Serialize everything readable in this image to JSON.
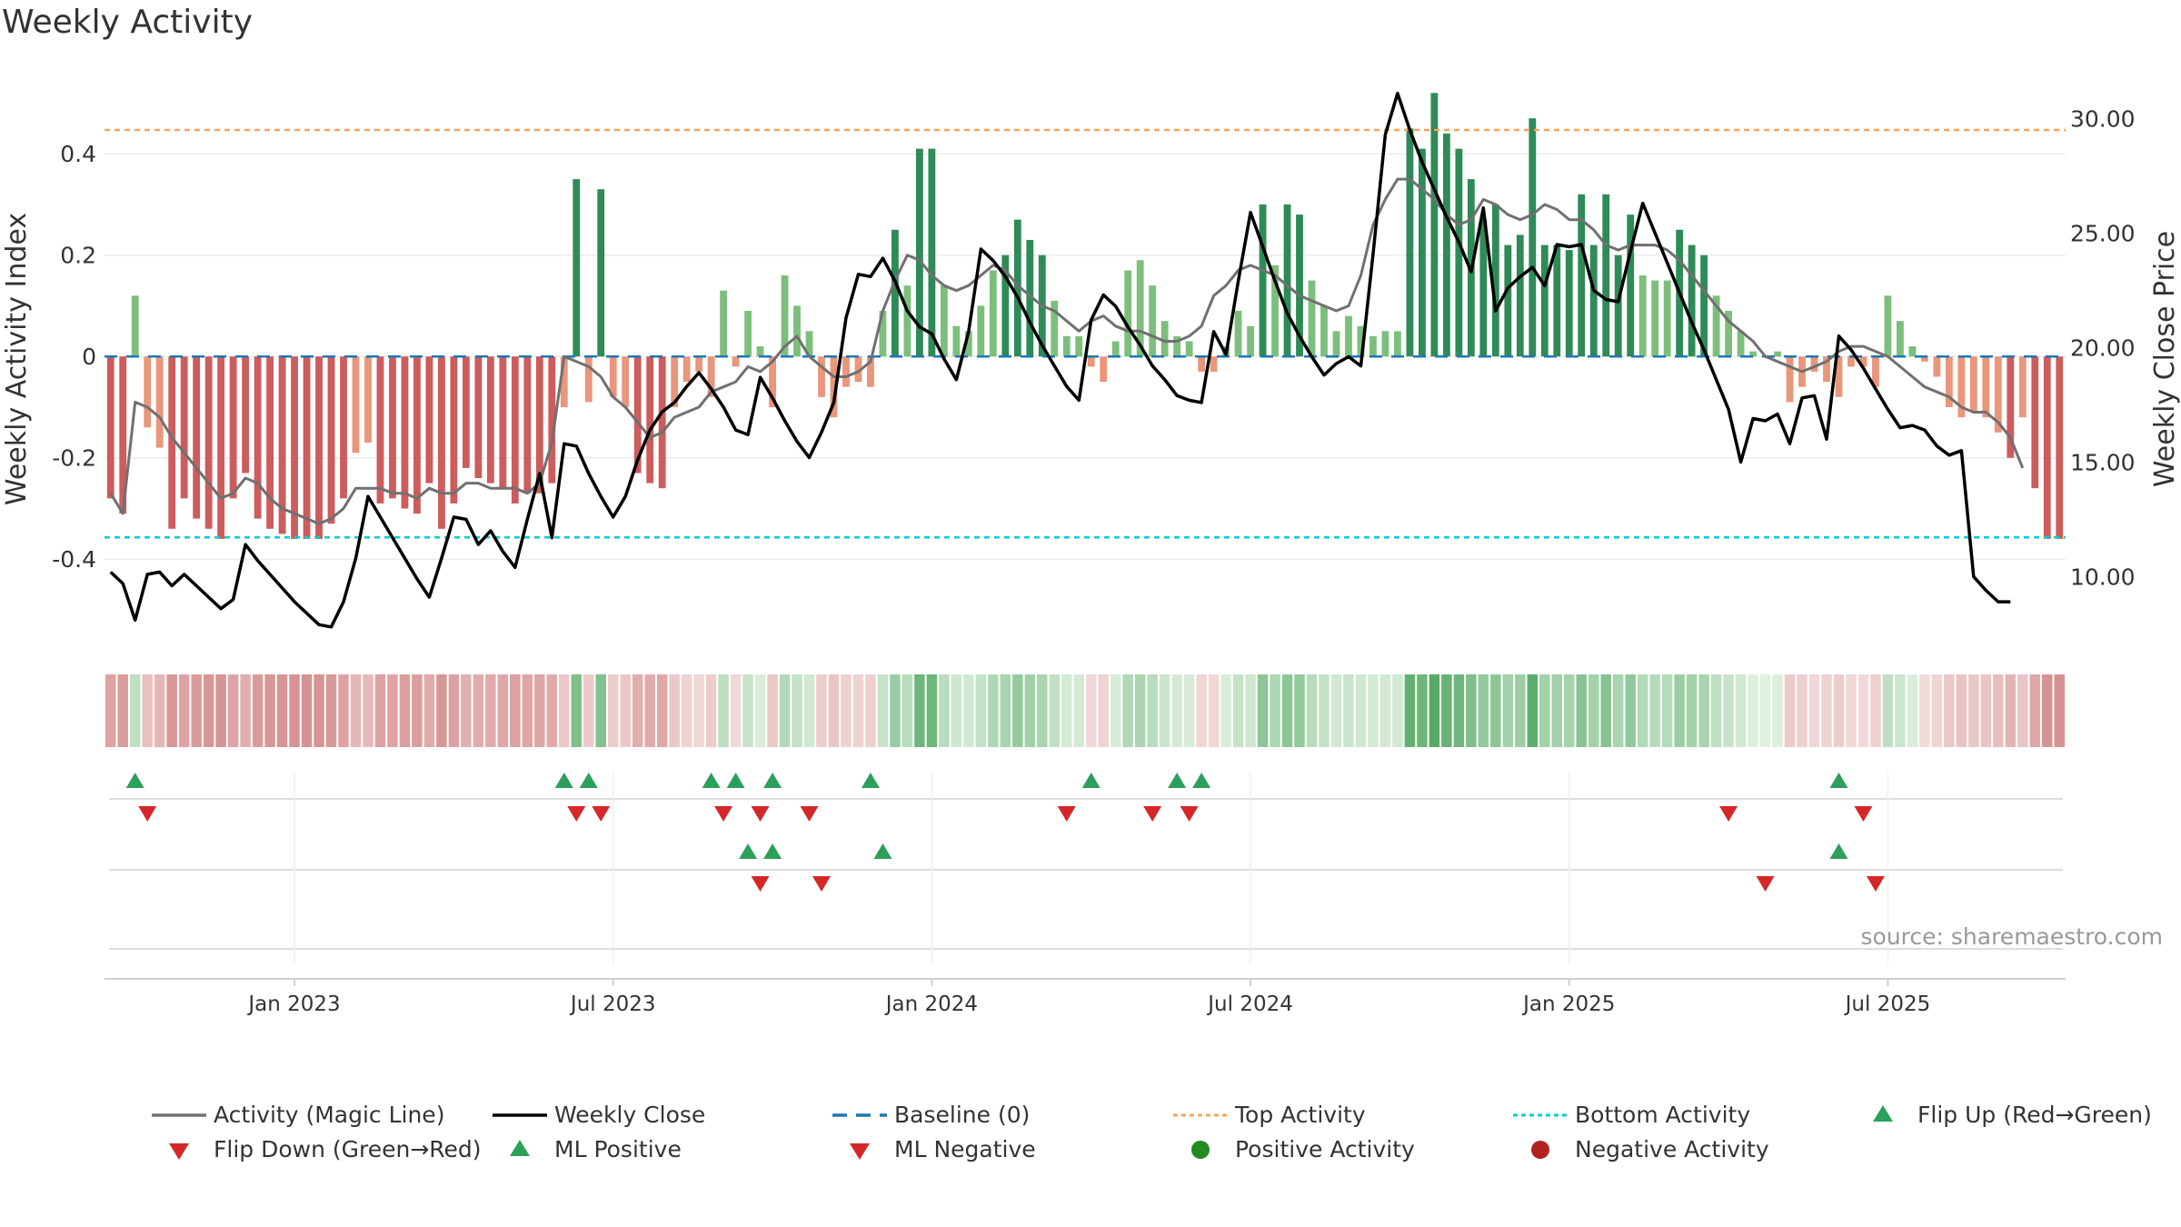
{
  "chart_data": {
    "type": "bar",
    "title": "Weekly Activity",
    "ylabel": "Weekly Activity Index",
    "y2label": "Weekly Close Price",
    "ylim": [
      -0.57,
      0.56
    ],
    "y2lim": [
      7,
      32
    ],
    "yticks": [
      {
        "value": 0.4,
        "label": "0.4"
      },
      {
        "value": 0.2,
        "label": "0.2"
      },
      {
        "value": 0,
        "label": "0"
      },
      {
        "value": -0.2,
        "label": "-0.2"
      },
      {
        "value": -0.4,
        "label": "-0.4"
      }
    ],
    "y2ticks": [
      {
        "value": 30,
        "label": "30.00"
      },
      {
        "value": 25,
        "label": "25.00"
      },
      {
        "value": 20,
        "label": "20.00"
      },
      {
        "value": 15,
        "label": "15.00"
      },
      {
        "value": 10,
        "label": "10.00"
      }
    ],
    "xticks": [
      {
        "week": 15,
        "label": "Jan 2023"
      },
      {
        "week": 41,
        "label": "Jul 2023"
      },
      {
        "week": 67,
        "label": "Jan 2024"
      },
      {
        "week": 93,
        "label": "Jul 2024"
      },
      {
        "week": 119,
        "label": "Jan 2025"
      },
      {
        "week": 145,
        "label": "Jul 2025"
      }
    ],
    "top_activity": 0.447,
    "bottom_activity": -0.357,
    "baseline": 0,
    "activity": [
      -0.28,
      -0.31,
      0.12,
      -0.14,
      -0.18,
      -0.34,
      -0.28,
      -0.32,
      -0.34,
      -0.36,
      -0.28,
      -0.23,
      -0.32,
      -0.34,
      -0.35,
      -0.36,
      -0.36,
      -0.36,
      -0.33,
      -0.28,
      -0.19,
      -0.17,
      -0.29,
      -0.28,
      -0.3,
      -0.31,
      -0.25,
      -0.34,
      -0.29,
      -0.22,
      -0.24,
      -0.25,
      -0.26,
      -0.29,
      -0.27,
      -0.27,
      -0.25,
      -0.1,
      0.35,
      -0.09,
      0.33,
      -0.08,
      -0.1,
      -0.23,
      -0.25,
      -0.26,
      -0.1,
      -0.05,
      -0.03,
      -0.08,
      0.13,
      -0.02,
      0.09,
      0.02,
      -0.1,
      0.16,
      0.1,
      0.05,
      -0.08,
      -0.12,
      -0.06,
      -0.05,
      -0.06,
      0.09,
      0.25,
      0.14,
      0.41,
      0.41,
      0.14,
      0.06,
      0.05,
      0.1,
      0.17,
      0.2,
      0.27,
      0.23,
      0.2,
      0.11,
      0.04,
      0.04,
      -0.02,
      -0.05,
      0.03,
      0.17,
      0.19,
      0.14,
      0.07,
      0.04,
      0.03,
      -0.03,
      -0.03,
      0.02,
      0.09,
      0.06,
      0.3,
      0.18,
      0.3,
      0.28,
      0.15,
      0.1,
      0.05,
      0.08,
      0.06,
      0.04,
      0.05,
      0.05,
      0.45,
      0.41,
      0.52,
      0.44,
      0.41,
      0.35,
      0.27,
      0.3,
      0.22,
      0.24,
      0.47,
      0.22,
      0.22,
      0.21,
      0.32,
      0.22,
      0.32,
      0.2,
      0.28,
      0.16,
      0.15,
      0.15,
      0.25,
      0.22,
      0.2,
      0.12,
      0.09,
      0.05,
      0.01,
      0,
      0.01,
      -0.09,
      -0.06,
      -0.03,
      -0.05,
      -0.08,
      -0.02,
      -0.02,
      -0.06,
      0.12,
      0.07,
      0.02,
      -0.01,
      -0.04,
      -0.1,
      -0.12,
      -0.11,
      -0.12,
      -0.15,
      -0.2,
      -0.12,
      -0.26,
      -0.36,
      -0.36
    ],
    "magic_line": [
      -0.27,
      -0.31,
      -0.09,
      -0.1,
      -0.12,
      -0.16,
      -0.19,
      -0.22,
      -0.25,
      -0.28,
      -0.27,
      -0.24,
      -0.25,
      -0.28,
      -0.3,
      -0.31,
      -0.32,
      -0.33,
      -0.32,
      -0.3,
      -0.26,
      -0.26,
      -0.26,
      -0.27,
      -0.27,
      -0.28,
      -0.26,
      -0.27,
      -0.27,
      -0.25,
      -0.25,
      -0.26,
      -0.26,
      -0.26,
      -0.27,
      -0.25,
      -0.17,
      0,
      -0.01,
      -0.02,
      -0.04,
      -0.08,
      -0.1,
      -0.13,
      -0.16,
      -0.15,
      -0.12,
      -0.11,
      -0.1,
      -0.07,
      -0.06,
      -0.05,
      -0.02,
      -0.03,
      -0.01,
      0.02,
      0.04,
      0,
      -0.02,
      -0.04,
      -0.04,
      -0.03,
      -0.01,
      0.09,
      0.15,
      0.2,
      0.19,
      0.16,
      0.14,
      0.13,
      0.14,
      0.16,
      0.18,
      0.17,
      0.14,
      0.12,
      0.1,
      0.09,
      0.07,
      0.05,
      0.07,
      0.08,
      0.06,
      0.05,
      0.05,
      0.04,
      0.03,
      0.03,
      0.04,
      0.06,
      0.12,
      0.14,
      0.17,
      0.18,
      0.17,
      0.16,
      0.14,
      0.12,
      0.11,
      0.1,
      0.09,
      0.1,
      0.16,
      0.26,
      0.31,
      0.35,
      0.35,
      0.33,
      0.31,
      0.28,
      0.26,
      0.27,
      0.31,
      0.3,
      0.28,
      0.27,
      0.28,
      0.3,
      0.29,
      0.27,
      0.27,
      0.25,
      0.22,
      0.21,
      0.22,
      0.22,
      0.22,
      0.21,
      0.19,
      0.16,
      0.13,
      0.1,
      0.07,
      0.05,
      0.03,
      0,
      -0.01,
      -0.02,
      -0.03,
      -0.02,
      -0.01,
      0.01,
      0.02,
      0.02,
      0.01,
      0,
      -0.02,
      -0.04,
      -0.06,
      -0.07,
      -0.08,
      -0.1,
      -0.11,
      -0.11,
      -0.13,
      -0.16,
      -0.22
    ],
    "weekly_close": [
      10.2,
      9.7,
      8.1,
      10.1,
      10.2,
      9.6,
      10.1,
      9.6,
      9.1,
      8.6,
      9.0,
      11.4,
      10.7,
      10.1,
      9.5,
      8.9,
      8.4,
      7.9,
      7.8,
      8.9,
      10.8,
      13.5,
      12.6,
      11.7,
      10.8,
      9.9,
      9.1,
      10.8,
      12.6,
      12.5,
      11.4,
      12.0,
      11.1,
      10.4,
      12.5,
      14.5,
      11.7,
      15.8,
      15.7,
      14.5,
      13.5,
      12.6,
      13.5,
      15.1,
      16.4,
      17.2,
      17.6,
      18.3,
      18.9,
      18.2,
      17.4,
      16.4,
      16.2,
      18.7,
      17.8,
      16.8,
      15.9,
      15.2,
      16.3,
      17.6,
      21.3,
      23.2,
      23.1,
      23.9,
      22.9,
      21.6,
      20.9,
      20.6,
      19.5,
      18.6,
      20.7,
      24.3,
      23.8,
      23.1,
      22.2,
      21.1,
      20.1,
      19.2,
      18.3,
      17.7,
      21.2,
      22.3,
      21.8,
      20.9,
      20.1,
      19.2,
      18.6,
      17.9,
      17.7,
      17.6,
      20.7,
      19.7,
      22.9,
      25.9,
      24.4,
      22.9,
      21.5,
      20.5,
      19.6,
      18.8,
      19.3,
      19.6,
      19.2,
      24.1,
      29.3,
      31.1,
      29.5,
      28.1,
      26.9,
      25.7,
      24.6,
      23.3,
      26.1,
      21.6,
      22.6,
      23.1,
      23.5,
      22.7,
      24.5,
      24.4,
      24.5,
      22.5,
      22.1,
      22.0,
      24.2,
      26.3,
      25.0,
      23.7,
      22.4,
      21.1,
      19.9,
      18.6,
      17.3,
      15.0,
      16.9,
      16.8,
      17.1,
      15.8,
      17.8,
      17.9,
      16.0,
      20.5,
      19.9,
      19.1,
      18.2,
      17.3,
      16.5,
      16.6,
      16.4,
      15.7,
      15.3,
      15.5,
      10.0,
      9.4,
      8.9,
      8.9
    ],
    "flip_up": [
      2,
      37,
      39,
      49,
      51,
      54,
      62,
      80,
      87,
      89,
      141
    ],
    "flip_down": [
      3,
      38,
      40,
      50,
      53,
      57,
      78,
      85,
      88,
      132,
      143
    ],
    "ml_positive": [
      52,
      54,
      63,
      141
    ],
    "ml_negative": [
      53,
      58,
      135,
      144
    ],
    "watermark": "source: sharemaestro.com",
    "legend": [
      {
        "key": "magic",
        "label": "Activity (Magic Line)"
      },
      {
        "key": "close",
        "label": "Weekly Close"
      },
      {
        "key": "baseline",
        "label": "Baseline (0)"
      },
      {
        "key": "top",
        "label": "Top Activity"
      },
      {
        "key": "bottom",
        "label": "Bottom Activity"
      },
      {
        "key": "flipup",
        "label": "Flip Up (Red→Green)"
      },
      {
        "key": "flipdown",
        "label": "Flip Down (Green→Red)"
      },
      {
        "key": "mlpos",
        "label": "ML Positive"
      },
      {
        "key": "mlneg",
        "label": "ML Negative"
      },
      {
        "key": "posact",
        "label": "Positive Activity"
      },
      {
        "key": "negact",
        "label": "Negative Activity"
      }
    ],
    "colors": {
      "pos_strong": "#2e8b57",
      "pos_weak": "#7cbf7c",
      "neg_strong": "#cd5c5c",
      "neg_weak": "#e9967a",
      "magic_line": "#707070",
      "close_line": "#000000",
      "baseline": "#1f77b4",
      "top_line": "#f4a460",
      "bottom_line": "#00ced1",
      "marker_up": "#2ca05a",
      "marker_down": "#d62728",
      "pos_dot": "#228b22",
      "neg_dot": "#b22222"
    }
  }
}
